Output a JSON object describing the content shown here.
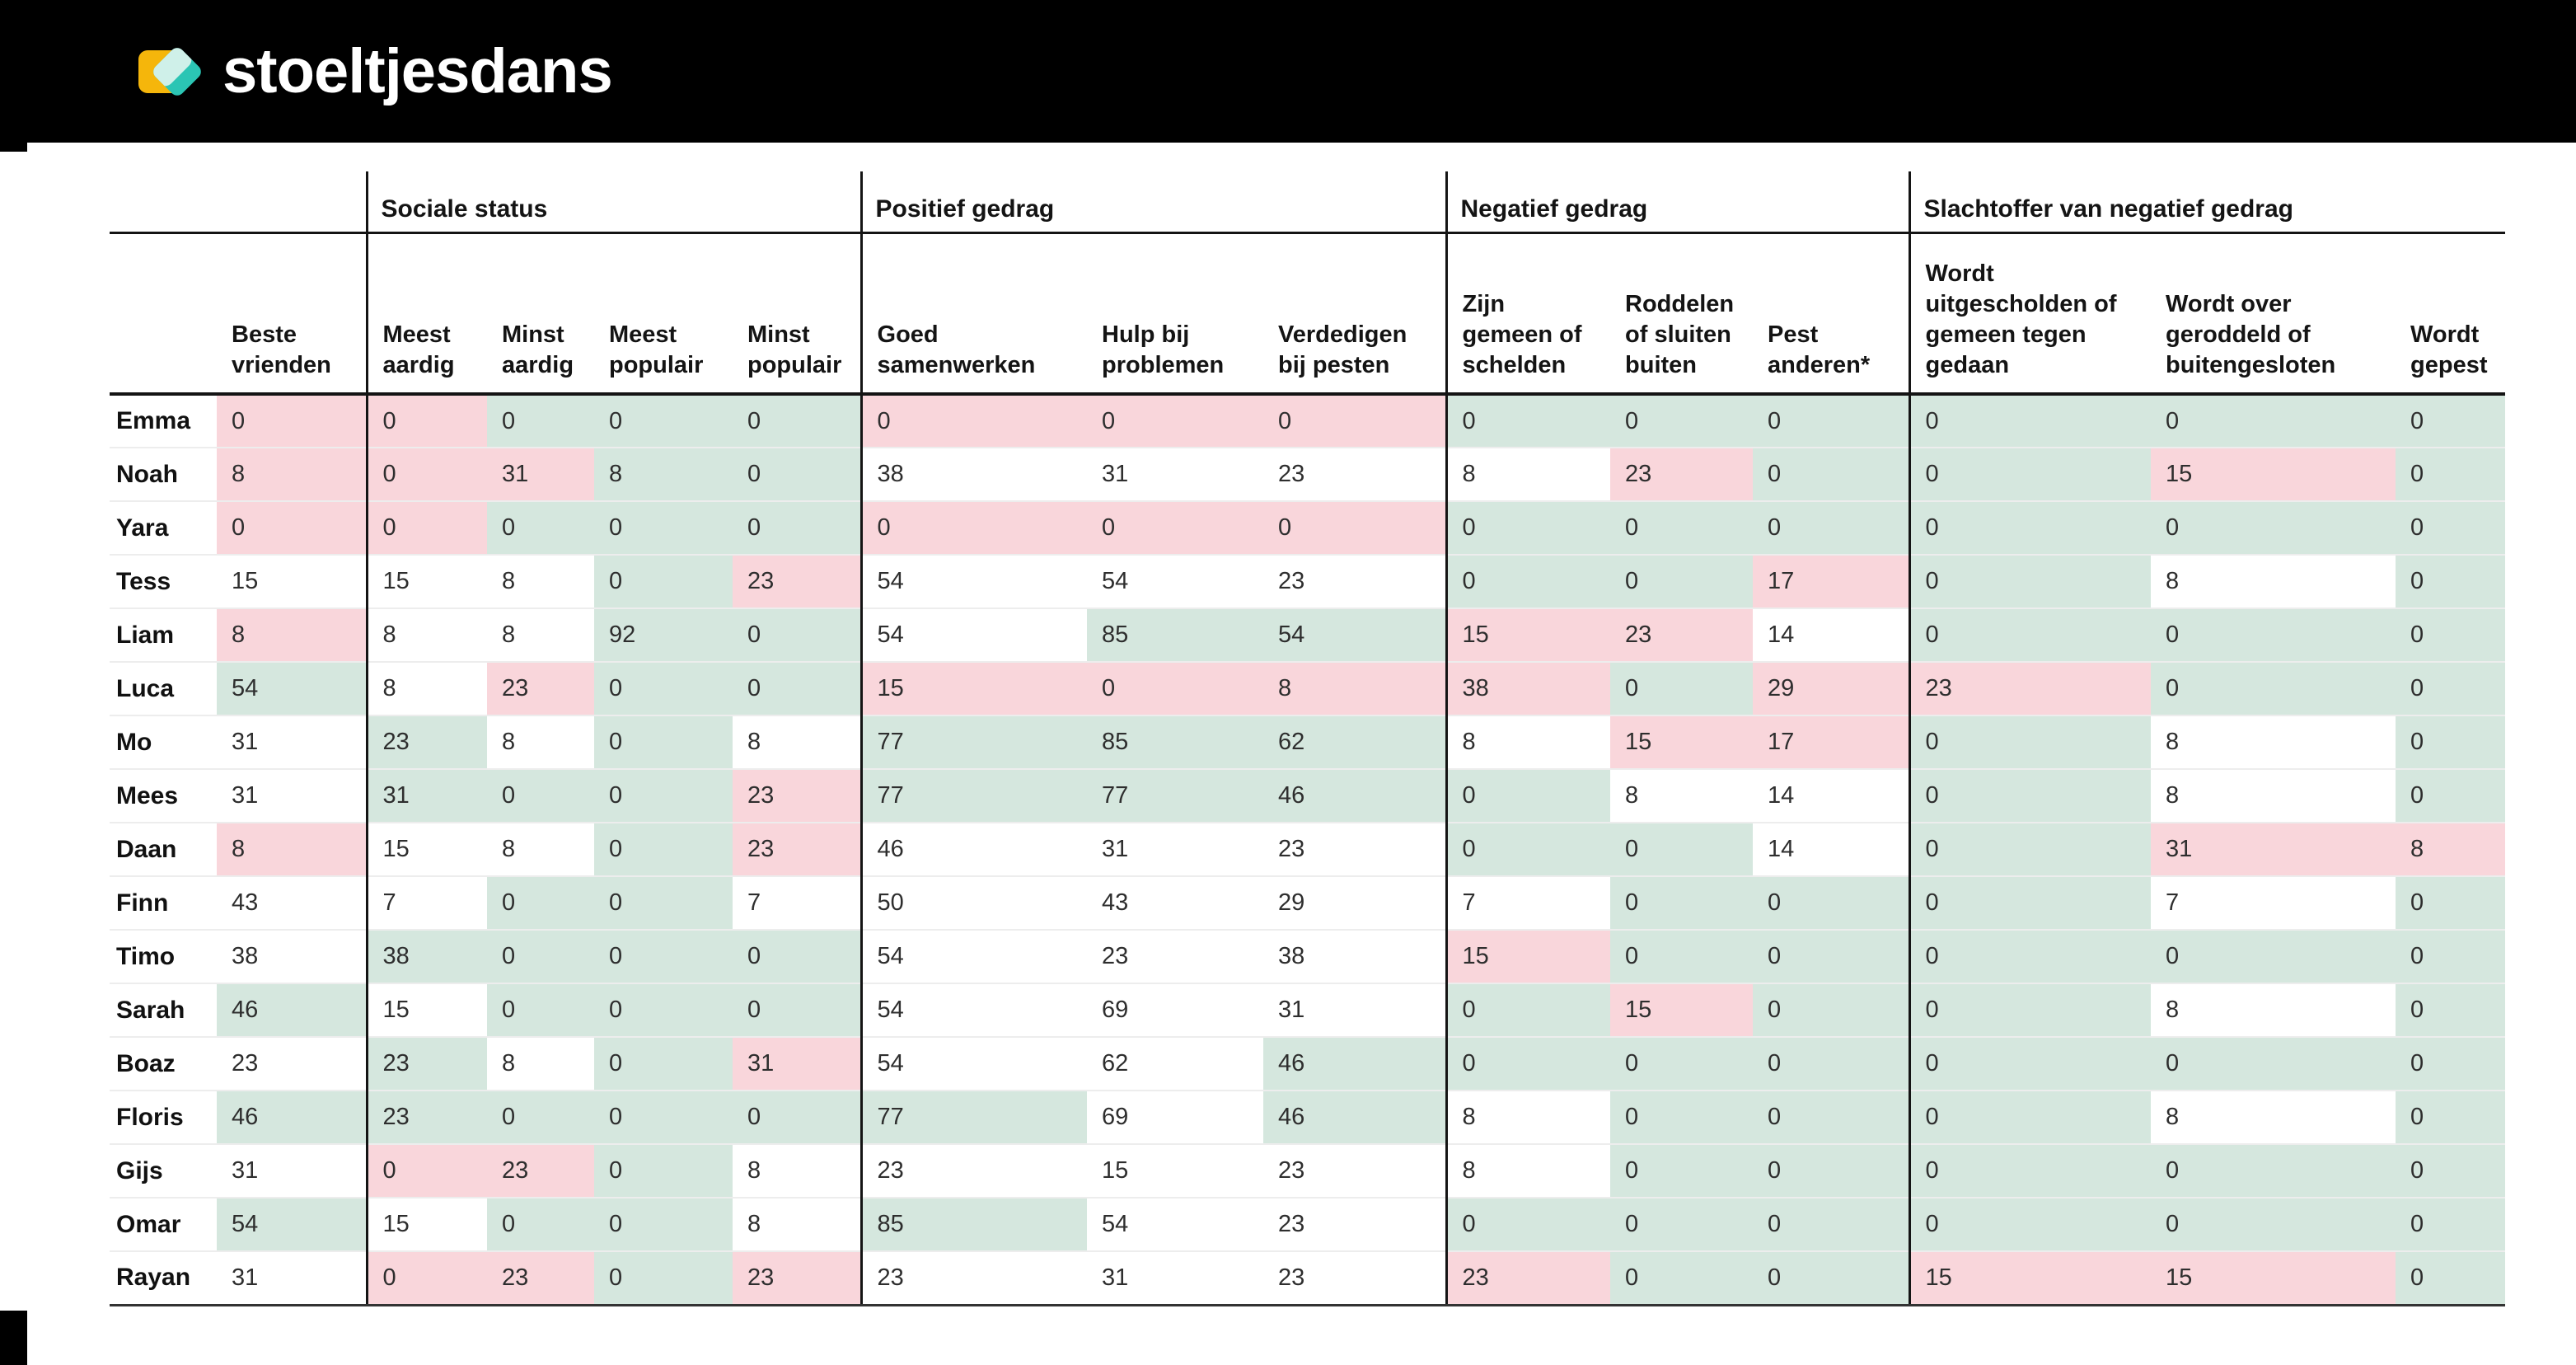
{
  "header": {
    "logo_text": "stoeltjesdans"
  },
  "colors": {
    "topbar": "#000000",
    "cell_positive_green": "#d5e7de",
    "cell_negative_pink": "#f9d6db",
    "logo_yellow": "#F5B60B",
    "logo_teal": "#2BC5B4",
    "logo_overlap": "#CFF0E9"
  },
  "table": {
    "groups": [
      {
        "label": "",
        "span": 2
      },
      {
        "label": "Sociale status",
        "span": 4
      },
      {
        "label": "Positief gedrag",
        "span": 3
      },
      {
        "label": "Negatief gedrag",
        "span": 3
      },
      {
        "label": "Slachtoffer van negatief gedrag",
        "span": 3
      }
    ],
    "columns": [
      "",
      "Beste vrienden",
      "Meest aardig",
      "Minst aardig",
      "Meest populair",
      "Minst populair",
      "Goed samenwerken",
      "Hulp bij problemen",
      "Verdedigen bij pesten",
      "Zijn gemeen of schelden",
      "Roddelen of sluiten buiten",
      "Pest anderen*",
      "Wordt uitgescholden of gemeen tegen gedaan",
      "Wordt over geroddeld of buitengesloten",
      "Wordt gepest"
    ],
    "group_start_indexes": [
      1,
      5,
      8,
      11
    ],
    "rows": [
      {
        "name": "Emma",
        "values": [
          0,
          0,
          0,
          0,
          0,
          0,
          0,
          0,
          0,
          0,
          0,
          0,
          0,
          0
        ],
        "colors": [
          "p",
          "p",
          "g",
          "g",
          "g",
          "p",
          "p",
          "p",
          "g",
          "g",
          "g",
          "g",
          "g",
          "g"
        ]
      },
      {
        "name": "Noah",
        "values": [
          8,
          0,
          31,
          8,
          0,
          38,
          31,
          23,
          8,
          23,
          0,
          0,
          15,
          0
        ],
        "colors": [
          "p",
          "p",
          "p",
          "g",
          "g",
          "w",
          "w",
          "w",
          "w",
          "p",
          "g",
          "g",
          "p",
          "g"
        ]
      },
      {
        "name": "Yara",
        "values": [
          0,
          0,
          0,
          0,
          0,
          0,
          0,
          0,
          0,
          0,
          0,
          0,
          0,
          0
        ],
        "colors": [
          "p",
          "p",
          "g",
          "g",
          "g",
          "p",
          "p",
          "p",
          "g",
          "g",
          "g",
          "g",
          "g",
          "g"
        ]
      },
      {
        "name": "Tess",
        "values": [
          15,
          15,
          8,
          0,
          23,
          54,
          54,
          23,
          0,
          0,
          17,
          0,
          8,
          0
        ],
        "colors": [
          "w",
          "w",
          "w",
          "g",
          "p",
          "w",
          "w",
          "w",
          "g",
          "g",
          "p",
          "g",
          "w",
          "g"
        ]
      },
      {
        "name": "Liam",
        "values": [
          8,
          8,
          8,
          92,
          0,
          54,
          85,
          54,
          15,
          23,
          14,
          0,
          0,
          0
        ],
        "colors": [
          "p",
          "w",
          "w",
          "g",
          "g",
          "w",
          "g",
          "g",
          "p",
          "p",
          "w",
          "g",
          "g",
          "g"
        ]
      },
      {
        "name": "Luca",
        "values": [
          54,
          8,
          23,
          0,
          0,
          15,
          0,
          8,
          38,
          0,
          29,
          23,
          0,
          0
        ],
        "colors": [
          "g",
          "w",
          "p",
          "g",
          "g",
          "p",
          "p",
          "p",
          "p",
          "g",
          "p",
          "p",
          "g",
          "g"
        ]
      },
      {
        "name": "Mo",
        "values": [
          31,
          23,
          8,
          0,
          8,
          77,
          85,
          62,
          8,
          15,
          17,
          0,
          8,
          0
        ],
        "colors": [
          "w",
          "g",
          "w",
          "g",
          "w",
          "g",
          "g",
          "g",
          "w",
          "p",
          "p",
          "g",
          "w",
          "g"
        ]
      },
      {
        "name": "Mees",
        "values": [
          31,
          31,
          0,
          0,
          23,
          77,
          77,
          46,
          0,
          8,
          14,
          0,
          8,
          0
        ],
        "colors": [
          "w",
          "g",
          "g",
          "g",
          "p",
          "g",
          "g",
          "g",
          "g",
          "w",
          "w",
          "g",
          "w",
          "g"
        ]
      },
      {
        "name": "Daan",
        "values": [
          8,
          15,
          8,
          0,
          23,
          46,
          31,
          23,
          0,
          0,
          14,
          0,
          31,
          8
        ],
        "colors": [
          "p",
          "w",
          "w",
          "g",
          "p",
          "w",
          "w",
          "w",
          "g",
          "g",
          "w",
          "g",
          "p",
          "p"
        ]
      },
      {
        "name": "Finn",
        "values": [
          43,
          7,
          0,
          0,
          7,
          50,
          43,
          29,
          7,
          0,
          0,
          0,
          7,
          0
        ],
        "colors": [
          "w",
          "w",
          "g",
          "g",
          "w",
          "w",
          "w",
          "w",
          "w",
          "g",
          "g",
          "g",
          "w",
          "g"
        ]
      },
      {
        "name": "Timo",
        "values": [
          38,
          38,
          0,
          0,
          0,
          54,
          23,
          38,
          15,
          0,
          0,
          0,
          0,
          0
        ],
        "colors": [
          "w",
          "g",
          "g",
          "g",
          "g",
          "w",
          "w",
          "w",
          "p",
          "g",
          "g",
          "g",
          "g",
          "g"
        ]
      },
      {
        "name": "Sarah",
        "values": [
          46,
          15,
          0,
          0,
          0,
          54,
          69,
          31,
          0,
          15,
          0,
          0,
          8,
          0
        ],
        "colors": [
          "g",
          "w",
          "g",
          "g",
          "g",
          "w",
          "w",
          "w",
          "g",
          "p",
          "g",
          "g",
          "w",
          "g"
        ]
      },
      {
        "name": "Boaz",
        "values": [
          23,
          23,
          8,
          0,
          31,
          54,
          62,
          46,
          0,
          0,
          0,
          0,
          0,
          0
        ],
        "colors": [
          "w",
          "g",
          "w",
          "g",
          "p",
          "w",
          "w",
          "g",
          "g",
          "g",
          "g",
          "g",
          "g",
          "g"
        ]
      },
      {
        "name": "Floris",
        "values": [
          46,
          23,
          0,
          0,
          0,
          77,
          69,
          46,
          8,
          0,
          0,
          0,
          8,
          0
        ],
        "colors": [
          "g",
          "g",
          "g",
          "g",
          "g",
          "g",
          "w",
          "g",
          "w",
          "g",
          "g",
          "g",
          "w",
          "g"
        ]
      },
      {
        "name": "Gijs",
        "values": [
          31,
          0,
          23,
          0,
          8,
          23,
          15,
          23,
          8,
          0,
          0,
          0,
          0,
          0
        ],
        "colors": [
          "w",
          "p",
          "p",
          "g",
          "w",
          "w",
          "w",
          "w",
          "w",
          "g",
          "g",
          "g",
          "g",
          "g"
        ]
      },
      {
        "name": "Omar",
        "values": [
          54,
          15,
          0,
          0,
          8,
          85,
          54,
          23,
          0,
          0,
          0,
          0,
          0,
          0
        ],
        "colors": [
          "g",
          "w",
          "g",
          "g",
          "w",
          "g",
          "w",
          "w",
          "g",
          "g",
          "g",
          "g",
          "g",
          "g"
        ]
      },
      {
        "name": "Rayan",
        "values": [
          31,
          0,
          23,
          0,
          23,
          23,
          31,
          23,
          23,
          0,
          0,
          15,
          15,
          0
        ],
        "colors": [
          "w",
          "p",
          "p",
          "g",
          "p",
          "w",
          "w",
          "w",
          "p",
          "g",
          "g",
          "p",
          "p",
          "g"
        ]
      }
    ]
  }
}
